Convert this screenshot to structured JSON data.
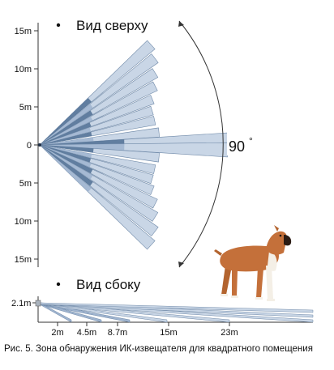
{
  "top_view": {
    "title": "Вид сверху",
    "angle": "90",
    "angle_unit": "°",
    "axis_ticks": [
      {
        "label": "15m",
        "value": 15
      },
      {
        "label": "10m",
        "value": 10
      },
      {
        "label": "5m",
        "value": 5
      },
      {
        "label": "0",
        "value": 0
      },
      {
        "label": "5m",
        "value": -5
      },
      {
        "label": "10m",
        "value": -10
      },
      {
        "label": "15m",
        "value": -15
      }
    ]
  },
  "side_view": {
    "title": "Вид сбоку",
    "height_label": "2.1m",
    "distance_ticks": [
      {
        "label": "2m",
        "value": 2
      },
      {
        "label": "4.5m",
        "value": 4.5
      },
      {
        "label": "8.7m",
        "value": 8.7
      },
      {
        "label": "15m",
        "value": 15
      },
      {
        "label": "23m",
        "value": 23
      }
    ]
  },
  "caption": "Рис. 5. Зона обнаружения ИК-извещателя для квадратного помещения",
  "colors": {
    "beam_light": "#c9d6e6",
    "beam_mid": "#9fb4cf",
    "beam_dark": "#4f6e93",
    "beam_edge": "#6f89a8",
    "dog_body": "#c4703a",
    "dog_white": "#f4efe6",
    "dog_muzzle": "#2b1c14"
  }
}
